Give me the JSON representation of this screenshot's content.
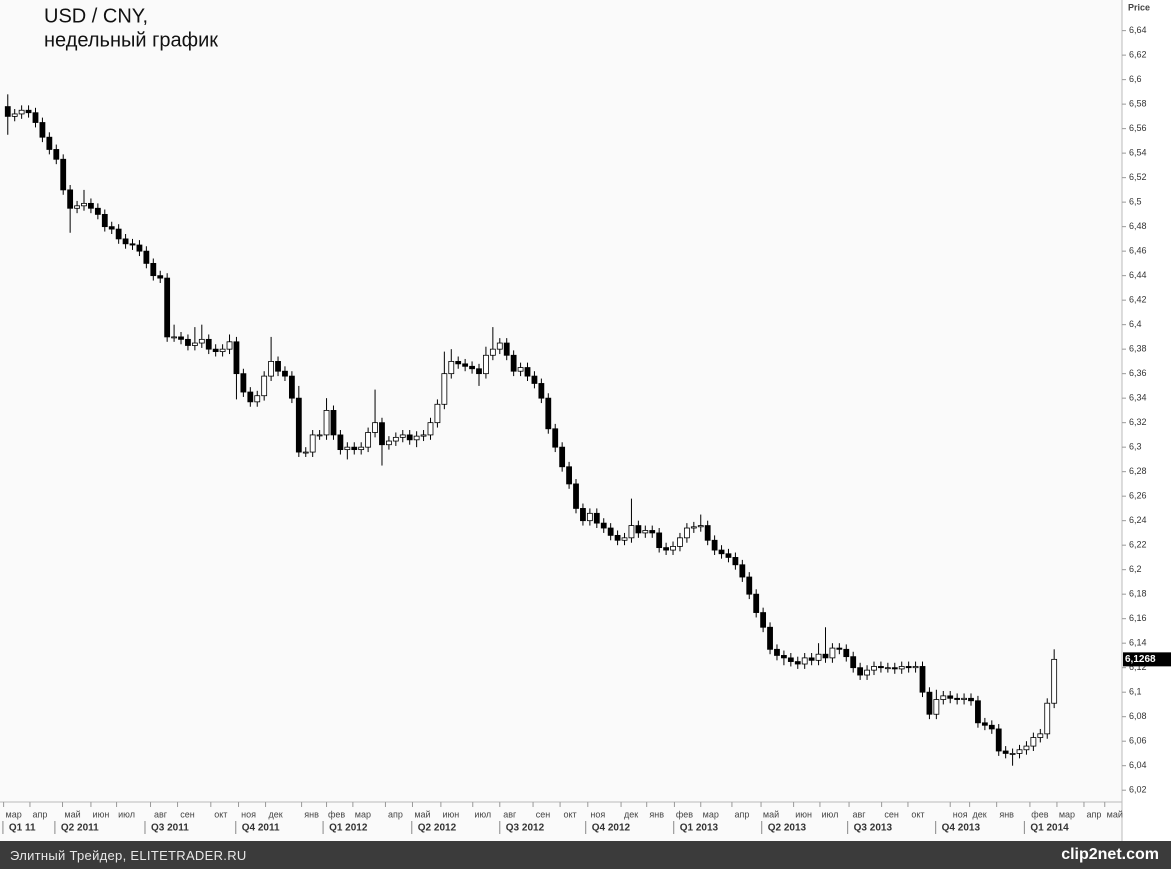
{
  "chart_data": {
    "type": "candlestick",
    "title": "USD / CNY,",
    "subtitle": "недельный график",
    "y_axis_label": "Price",
    "up_color": "#ffffff",
    "down_color": "#000000",
    "last_price": {
      "value": 6.1268,
      "label": "6,1268"
    },
    "open": [
      6.578,
      6.57,
      6.572,
      6.575,
      6.573,
      6.565,
      6.553,
      6.543,
      6.535,
      6.51,
      6.495,
      6.497,
      6.499,
      6.495,
      6.49,
      6.48,
      6.478,
      6.47,
      6.466,
      6.465,
      6.46,
      6.45,
      6.44,
      6.438,
      6.39,
      6.39,
      6.388,
      6.383,
      6.385,
      6.388,
      6.38,
      6.378,
      6.38,
      6.386,
      6.36,
      6.345,
      6.337,
      6.342,
      6.358,
      6.37,
      6.362,
      6.358,
      6.34,
      6.296,
      6.296,
      6.31,
      6.31,
      6.33,
      6.31,
      6.298,
      6.3,
      6.298,
      6.3,
      6.312,
      6.32,
      6.302,
      6.305,
      6.308,
      6.31,
      6.306,
      6.309,
      6.31,
      6.32,
      6.335,
      6.36,
      6.37,
      6.368,
      6.366,
      6.364,
      6.36,
      6.375,
      6.38,
      6.385,
      6.375,
      6.362,
      6.365,
      6.358,
      6.352,
      6.34,
      6.315,
      6.3,
      6.284,
      6.27,
      6.25,
      6.24,
      6.246,
      6.238,
      6.234,
      6.228,
      6.224,
      6.226,
      6.236,
      6.23,
      6.232,
      6.23,
      6.218,
      6.216,
      6.219,
      6.226,
      6.234,
      6.235,
      6.236,
      6.224,
      6.216,
      6.213,
      6.21,
      6.204,
      6.194,
      6.18,
      6.165,
      6.153,
      6.135,
      6.13,
      6.128,
      6.125,
      6.123,
      6.128,
      6.126,
      6.131,
      6.128,
      6.136,
      6.135,
      6.129,
      6.12,
      6.114,
      6.118,
      6.121,
      6.12,
      6.12,
      6.119,
      6.121,
      6.12,
      6.121,
      6.1,
      6.082,
      6.094,
      6.097,
      6.095,
      6.094,
      6.095,
      6.093,
      6.075,
      6.073,
      6.07,
      6.052,
      6.05,
      6.05,
      6.053,
      6.056,
      6.063,
      6.066,
      6.091
    ],
    "high": [
      6.588,
      6.576,
      6.579,
      6.579,
      6.577,
      6.569,
      6.557,
      6.547,
      6.539,
      6.514,
      6.501,
      6.51,
      6.503,
      6.499,
      6.494,
      6.484,
      6.482,
      6.474,
      6.47,
      6.469,
      6.464,
      6.454,
      6.444,
      6.442,
      6.4,
      6.394,
      6.392,
      6.398,
      6.4,
      6.392,
      6.384,
      6.384,
      6.392,
      6.39,
      6.364,
      6.349,
      6.346,
      6.362,
      6.39,
      6.374,
      6.366,
      6.362,
      6.35,
      6.3,
      6.314,
      6.314,
      6.34,
      6.334,
      6.314,
      6.304,
      6.304,
      6.304,
      6.316,
      6.347,
      6.324,
      6.309,
      6.312,
      6.314,
      6.314,
      6.313,
      6.314,
      6.324,
      6.339,
      6.378,
      6.38,
      6.374,
      6.372,
      6.37,
      6.368,
      6.382,
      6.398,
      6.389,
      6.389,
      6.379,
      6.369,
      6.369,
      6.362,
      6.356,
      6.344,
      6.319,
      6.304,
      6.288,
      6.274,
      6.254,
      6.25,
      6.25,
      6.242,
      6.238,
      6.232,
      6.23,
      6.258,
      6.24,
      6.236,
      6.236,
      6.234,
      6.222,
      6.223,
      6.23,
      6.238,
      6.239,
      6.245,
      6.24,
      6.228,
      6.22,
      6.217,
      6.214,
      6.208,
      6.198,
      6.184,
      6.169,
      6.157,
      6.139,
      6.134,
      6.132,
      6.129,
      6.132,
      6.132,
      6.14,
      6.153,
      6.14,
      6.14,
      6.139,
      6.133,
      6.124,
      6.122,
      6.125,
      6.125,
      6.124,
      6.124,
      6.125,
      6.125,
      6.125,
      6.125,
      6.104,
      6.102,
      6.101,
      6.101,
      6.099,
      6.099,
      6.099,
      6.097,
      6.079,
      6.077,
      6.074,
      6.056,
      6.054,
      6.057,
      6.06,
      6.067,
      6.07,
      6.095,
      6.135
    ],
    "low": [
      6.555,
      6.566,
      6.568,
      6.569,
      6.561,
      6.549,
      6.539,
      6.531,
      6.506,
      6.475,
      6.491,
      6.493,
      6.491,
      6.486,
      6.476,
      6.474,
      6.466,
      6.462,
      6.461,
      6.456,
      6.446,
      6.436,
      6.434,
      6.386,
      6.386,
      6.384,
      6.379,
      6.379,
      6.381,
      6.376,
      6.374,
      6.374,
      6.376,
      6.339,
      6.341,
      6.333,
      6.333,
      6.338,
      6.354,
      6.358,
      6.354,
      6.336,
      6.292,
      6.292,
      6.292,
      6.306,
      6.306,
      6.306,
      6.294,
      6.29,
      6.294,
      6.294,
      6.296,
      6.308,
      6.285,
      6.298,
      6.301,
      6.304,
      6.302,
      6.3,
      6.305,
      6.306,
      6.316,
      6.331,
      6.356,
      6.364,
      6.362,
      6.36,
      6.35,
      6.356,
      6.371,
      6.376,
      6.371,
      6.358,
      6.358,
      6.354,
      6.348,
      6.336,
      6.311,
      6.296,
      6.28,
      6.266,
      6.246,
      6.236,
      6.236,
      6.234,
      6.23,
      6.224,
      6.22,
      6.22,
      6.222,
      6.226,
      6.226,
      6.226,
      6.214,
      6.212,
      6.212,
      6.215,
      6.222,
      6.23,
      6.231,
      6.22,
      6.212,
      6.209,
      6.206,
      6.2,
      6.19,
      6.176,
      6.161,
      6.149,
      6.131,
      6.126,
      6.122,
      6.121,
      6.119,
      6.119,
      6.122,
      6.122,
      6.124,
      6.124,
      6.131,
      6.125,
      6.116,
      6.11,
      6.11,
      6.114,
      6.116,
      6.116,
      6.115,
      6.115,
      6.116,
      6.116,
      6.096,
      6.078,
      6.078,
      6.09,
      6.091,
      6.09,
      6.09,
      6.089,
      6.071,
      6.069,
      6.066,
      6.048,
      6.046,
      6.04,
      6.046,
      6.049,
      6.052,
      6.059,
      6.062,
      6.087
    ],
    "close": [
      6.57,
      6.572,
      6.575,
      6.573,
      6.565,
      6.553,
      6.543,
      6.535,
      6.51,
      6.495,
      6.497,
      6.499,
      6.495,
      6.49,
      6.48,
      6.478,
      6.47,
      6.466,
      6.465,
      6.46,
      6.45,
      6.44,
      6.438,
      6.39,
      6.39,
      6.388,
      6.383,
      6.385,
      6.388,
      6.38,
      6.378,
      6.38,
      6.386,
      6.36,
      6.345,
      6.337,
      6.342,
      6.358,
      6.37,
      6.362,
      6.358,
      6.34,
      6.296,
      6.296,
      6.31,
      6.31,
      6.33,
      6.31,
      6.298,
      6.3,
      6.298,
      6.3,
      6.312,
      6.32,
      6.302,
      6.305,
      6.308,
      6.31,
      6.306,
      6.309,
      6.31,
      6.32,
      6.335,
      6.36,
      6.37,
      6.368,
      6.366,
      6.364,
      6.36,
      6.375,
      6.38,
      6.385,
      6.375,
      6.362,
      6.365,
      6.358,
      6.352,
      6.34,
      6.315,
      6.3,
      6.284,
      6.27,
      6.25,
      6.24,
      6.246,
      6.238,
      6.234,
      6.228,
      6.224,
      6.226,
      6.236,
      6.23,
      6.232,
      6.23,
      6.218,
      6.216,
      6.219,
      6.226,
      6.234,
      6.235,
      6.236,
      6.224,
      6.216,
      6.213,
      6.21,
      6.204,
      6.194,
      6.18,
      6.165,
      6.153,
      6.135,
      6.13,
      6.128,
      6.125,
      6.123,
      6.128,
      6.126,
      6.131,
      6.128,
      6.136,
      6.135,
      6.129,
      6.12,
      6.114,
      6.118,
      6.121,
      6.12,
      6.12,
      6.119,
      6.121,
      6.12,
      6.121,
      6.1,
      6.082,
      6.094,
      6.097,
      6.095,
      6.094,
      6.095,
      6.093,
      6.075,
      6.073,
      6.07,
      6.052,
      6.05,
      6.05,
      6.053,
      6.056,
      6.063,
      6.066,
      6.091,
      6.1268
    ],
    "ylim": [
      6.012,
      6.665
    ],
    "yticks": [
      {
        "value": 6.02,
        "label": "6,02"
      },
      {
        "value": 6.04,
        "label": "6,04"
      },
      {
        "value": 6.06,
        "label": "6,06"
      },
      {
        "value": 6.08,
        "label": "6,08"
      },
      {
        "value": 6.1,
        "label": "6,1"
      },
      {
        "value": 6.12,
        "label": "6,12"
      },
      {
        "value": 6.14,
        "label": "6,14"
      },
      {
        "value": 6.16,
        "label": "6,16"
      },
      {
        "value": 6.18,
        "label": "6,18"
      },
      {
        "value": 6.2,
        "label": "6,2"
      },
      {
        "value": 6.22,
        "label": "6,22"
      },
      {
        "value": 6.24,
        "label": "6,24"
      },
      {
        "value": 6.26,
        "label": "6,26"
      },
      {
        "value": 6.28,
        "label": "6,28"
      },
      {
        "value": 6.3,
        "label": "6,3"
      },
      {
        "value": 6.32,
        "label": "6,32"
      },
      {
        "value": 6.34,
        "label": "6,34"
      },
      {
        "value": 6.36,
        "label": "6,36"
      },
      {
        "value": 6.38,
        "label": "6,38"
      },
      {
        "value": 6.4,
        "label": "6,4"
      },
      {
        "value": 6.42,
        "label": "6,42"
      },
      {
        "value": 6.44,
        "label": "6,44"
      },
      {
        "value": 6.46,
        "label": "6,46"
      },
      {
        "value": 6.48,
        "label": "6,48"
      },
      {
        "value": 6.5,
        "label": "6,5"
      },
      {
        "value": 6.52,
        "label": "6,52"
      },
      {
        "value": 6.54,
        "label": "6,54"
      },
      {
        "value": 6.56,
        "label": "6,56"
      },
      {
        "value": 6.58,
        "label": "6,58"
      },
      {
        "value": 6.6,
        "label": "6,6"
      },
      {
        "value": 6.62,
        "label": "6,62"
      },
      {
        "value": 6.64,
        "label": "6,64"
      }
    ],
    "xlim": [
      -0.4,
      160.5
    ],
    "xticks": [
      {
        "value": -0.6,
        "label": "мар"
      },
      {
        "value": 3.2,
        "label": "апр"
      },
      {
        "value": 7.9,
        "label": "май"
      },
      {
        "value": 12,
        "label": "июн"
      },
      {
        "value": 15.7,
        "label": "июл"
      },
      {
        "value": 20.6,
        "label": "авг"
      },
      {
        "value": 24.5,
        "label": "сен"
      },
      {
        "value": 29.3,
        "label": "окт"
      },
      {
        "value": 33.3,
        "label": "ноя"
      },
      {
        "value": 37.2,
        "label": "дек"
      },
      {
        "value": 42.4,
        "label": "янв"
      },
      {
        "value": 46,
        "label": "фев"
      },
      {
        "value": 49.8,
        "label": "мар"
      },
      {
        "value": 54.5,
        "label": "апр"
      },
      {
        "value": 58.4,
        "label": "май"
      },
      {
        "value": 62.5,
        "label": "июн"
      },
      {
        "value": 67.1,
        "label": "июл"
      },
      {
        "value": 71,
        "label": "авг"
      },
      {
        "value": 75.8,
        "label": "сен"
      },
      {
        "value": 79.7,
        "label": "окт"
      },
      {
        "value": 83.7,
        "label": "ноя"
      },
      {
        "value": 88.5,
        "label": "дек"
      },
      {
        "value": 92.2,
        "label": "янв"
      },
      {
        "value": 96.2,
        "label": "фев"
      },
      {
        "value": 100,
        "label": "мар"
      },
      {
        "value": 104.5,
        "label": "апр"
      },
      {
        "value": 108.7,
        "label": "май"
      },
      {
        "value": 113.4,
        "label": "июн"
      },
      {
        "value": 117.2,
        "label": "июл"
      },
      {
        "value": 121.4,
        "label": "авг"
      },
      {
        "value": 126.1,
        "label": "сен"
      },
      {
        "value": 129.9,
        "label": "окт"
      },
      {
        "value": 136,
        "label": "ноя"
      },
      {
        "value": 138.8,
        "label": "дек"
      },
      {
        "value": 142.7,
        "label": "янв"
      },
      {
        "value": 147.5,
        "label": "фев"
      },
      {
        "value": 151.4,
        "label": "мар"
      },
      {
        "value": 155.3,
        "label": "апр"
      },
      {
        "value": 158.3,
        "label": "май"
      }
    ],
    "quarter_ticks": [
      {
        "value": -0.7,
        "label": "Q1 11"
      },
      {
        "value": 6.8,
        "label": "Q2 2011"
      },
      {
        "value": 19.8,
        "label": "Q3 2011"
      },
      {
        "value": 32.9,
        "label": "Q4 2011"
      },
      {
        "value": 45.5,
        "label": "Q1 2012"
      },
      {
        "value": 58.3,
        "label": "Q2 2012"
      },
      {
        "value": 71,
        "label": "Q3 2012"
      },
      {
        "value": 83.4,
        "label": "Q4 2012"
      },
      {
        "value": 96.1,
        "label": "Q1 2013"
      },
      {
        "value": 108.8,
        "label": "Q2 2013"
      },
      {
        "value": 121.2,
        "label": "Q3 2013"
      },
      {
        "value": 133.9,
        "label": "Q4 2013"
      },
      {
        "value": 146.7,
        "label": "Q1 2014"
      }
    ]
  },
  "footer": {
    "source": "Элитный Трейдер, ELITETRADER.RU",
    "watermark": "clip2net.com"
  }
}
